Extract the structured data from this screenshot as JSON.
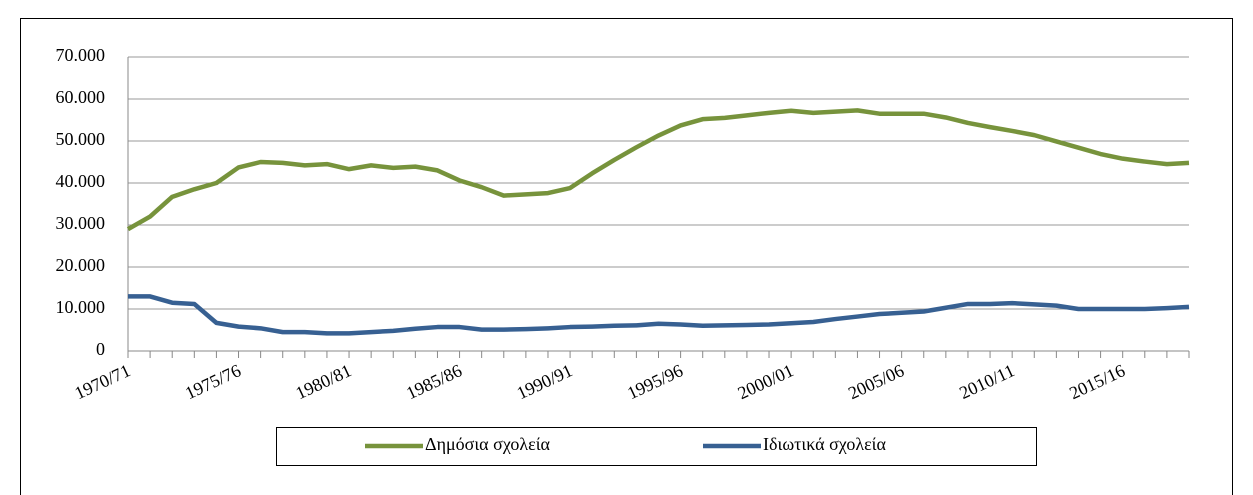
{
  "chart_data": {
    "type": "line",
    "categories": [
      "1970/71",
      null,
      null,
      null,
      null,
      "1975/76",
      null,
      null,
      null,
      null,
      "1980/81",
      null,
      null,
      null,
      null,
      "1985/86",
      null,
      null,
      null,
      null,
      "1990/91",
      null,
      null,
      null,
      null,
      "1995/96",
      null,
      null,
      null,
      null,
      "2000/01",
      null,
      null,
      null,
      null,
      "2005/06",
      null,
      null,
      null,
      null,
      "2010/11",
      null,
      null,
      null,
      null,
      "2015/16",
      null,
      null,
      null
    ],
    "series": [
      {
        "name": "Δημόσια σχολεία",
        "color": "#77933c",
        "values": [
          29000,
          32000,
          36700,
          38500,
          40000,
          43700,
          45000,
          44800,
          44200,
          44500,
          43300,
          44200,
          43600,
          43900,
          43000,
          40600,
          39000,
          37000,
          37300,
          37600,
          38800,
          42300,
          45500,
          48500,
          51300,
          53700,
          55200,
          55500,
          56100,
          56700,
          57200,
          56700,
          57000,
          57300,
          56500,
          56500,
          56500,
          55600,
          54300,
          53300,
          52400,
          51400,
          49900,
          48400,
          46900,
          45800,
          45100,
          44500,
          44800
        ]
      },
      {
        "name": "Ιδιωτικά σχολεία",
        "color": "#376092",
        "values": [
          13000,
          13000,
          11500,
          11200,
          6700,
          5800,
          5400,
          4500,
          4500,
          4200,
          4200,
          4500,
          4800,
          5300,
          5700,
          5700,
          5100,
          5100,
          5200,
          5400,
          5700,
          5800,
          6000,
          6100,
          6500,
          6300,
          6000,
          6100,
          6200,
          6300,
          6600,
          6900,
          7600,
          8200,
          8800,
          9100,
          9400,
          10300,
          11200,
          11200,
          11400,
          11100,
          10800,
          10000,
          10000,
          10000,
          10000,
          10200,
          10500
        ]
      }
    ],
    "ylim": [
      0,
      70000
    ],
    "yticks": [
      0,
      {
        "value": 10000,
        "label": "10.000"
      },
      {
        "value": 20000,
        "label": "20.000"
      },
      {
        "value": 30000,
        "label": "30.000"
      },
      {
        "value": 40000,
        "label": "40.000"
      },
      {
        "value": 50000,
        "label": "50.000"
      },
      {
        "value": 60000,
        "label": "60.000"
      },
      {
        "value": 70000,
        "label": "70.000"
      }
    ],
    "grid": true,
    "legend": "bottom"
  }
}
